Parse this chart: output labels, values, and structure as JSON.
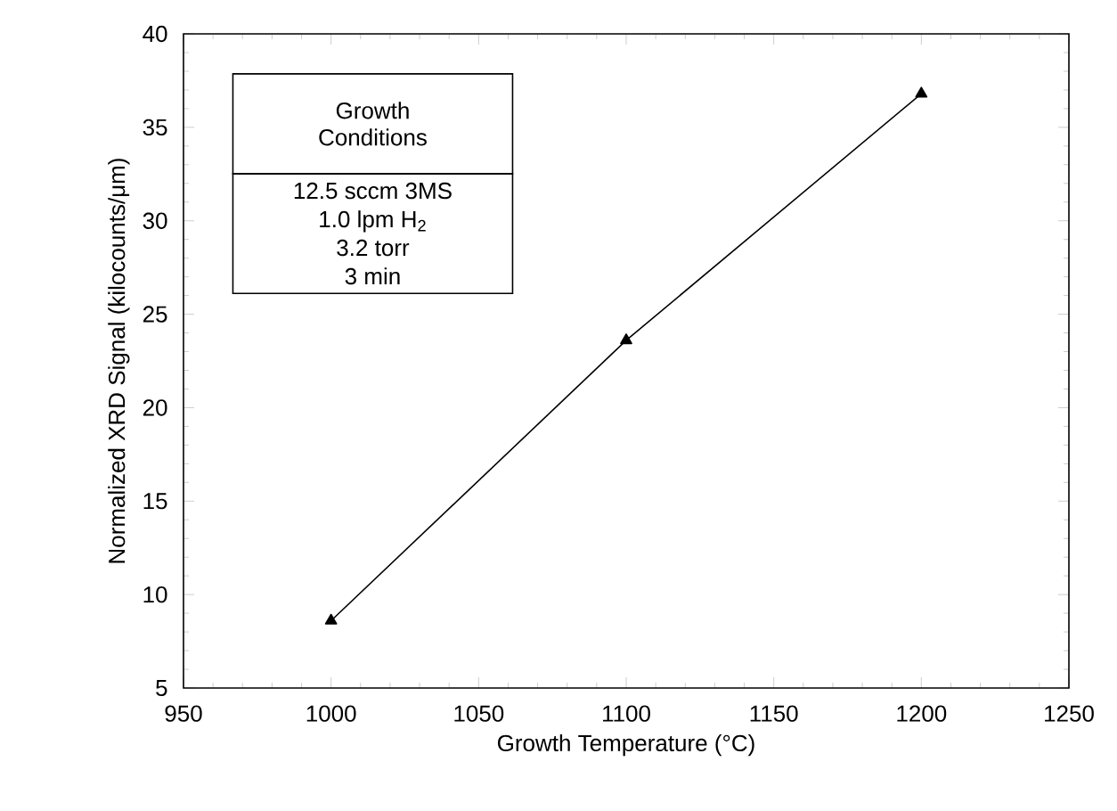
{
  "chart_data": {
    "type": "line",
    "xlabel": "Growth Temperature (°C)",
    "ylabel": "Normalized XRD Signal (kilocounts/μm)",
    "x": [
      1000,
      1100,
      1200
    ],
    "series": [
      {
        "color": "#000000",
        "values": [
          8.6,
          23.6,
          36.8
        ]
      }
    ],
    "xlim": [
      950,
      1250
    ],
    "ylim": [
      5,
      40
    ],
    "xticks": [
      950,
      1000,
      1050,
      1100,
      1150,
      1200,
      1250
    ],
    "yticks": [
      5,
      10,
      15,
      20,
      25,
      30,
      35,
      40
    ],
    "marker": "triangle",
    "line_style": "solid",
    "grid": false,
    "annotations": [
      "Growth Conditions",
      "12.5 sccm 3MS",
      "1.0 lpm H$_{2}$",
      "3.2 torr",
      "3 min"
    ]
  }
}
